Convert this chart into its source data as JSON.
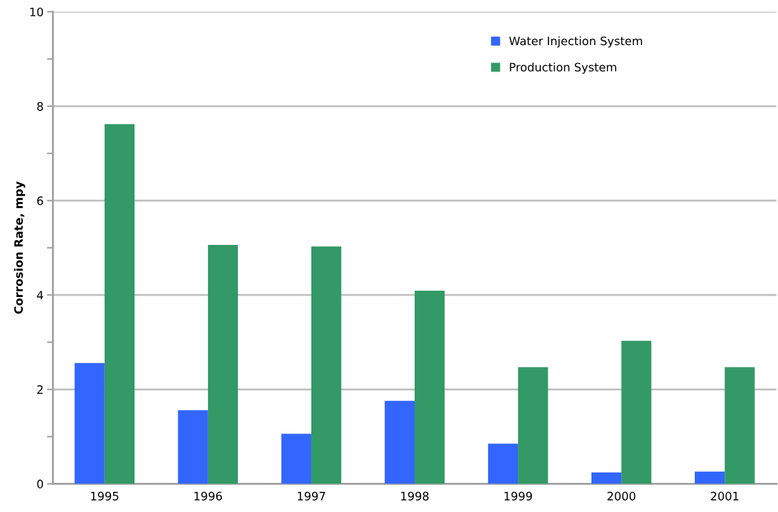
{
  "chart_data": {
    "type": "bar",
    "ylabel": "Corrosion Rate, mpy",
    "categories": [
      "1995",
      "1996",
      "1997",
      "1998",
      "1999",
      "2000",
      "2001"
    ],
    "series": [
      {
        "name": "Water Injection System",
        "color": "#3366ff",
        "values": [
          2.56,
          1.56,
          1.06,
          1.76,
          0.85,
          0.24,
          0.26
        ]
      },
      {
        "name": "Production System",
        "color": "#339966",
        "values": [
          7.62,
          5.06,
          5.03,
          4.09,
          2.47,
          3.03,
          2.47
        ]
      }
    ],
    "ylim": [
      0,
      10
    ],
    "yticks": [
      0,
      {
        "value": 1,
        "label": null
      },
      2,
      {
        "value": 3,
        "label": null
      },
      4,
      {
        "value": 5,
        "label": null
      },
      6,
      {
        "value": 7,
        "label": null
      },
      8,
      {
        "value": 9,
        "label": null
      },
      10
    ],
    "grid": "y",
    "legend": "top right"
  }
}
